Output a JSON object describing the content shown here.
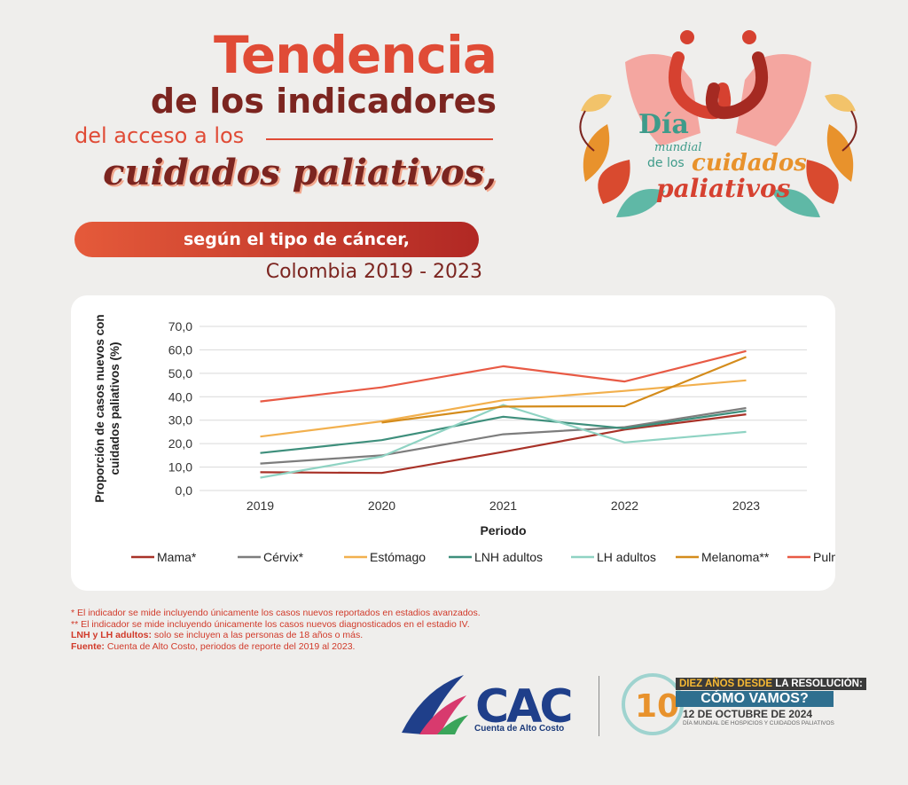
{
  "header": {
    "line1": "Tendencia",
    "line2": "de los indicadores",
    "line3": "del acceso a los",
    "line4": "cuidados paliativos,",
    "pill": "según el tipo de cáncer,",
    "subtitle": "Colombia 2019 - 2023"
  },
  "logo_dia": {
    "line1": "Día",
    "line2": "mundial",
    "line3": "de los",
    "line4": "cuidados",
    "line5": "paliativos"
  },
  "chart_data": {
    "type": "line",
    "title": "",
    "xlabel": "Periodo",
    "ylabel": "Proporción de casos nuevos con cuidados paliativos (%)",
    "categories": [
      "2019",
      "2020",
      "2021",
      "2022",
      "2023"
    ],
    "ylim": [
      0,
      70
    ],
    "yticks": [
      "0,0",
      "10,0",
      "20,0",
      "30,0",
      "40,0",
      "50,0",
      "60,0",
      "70,0"
    ],
    "grid": true,
    "legend_position": "bottom",
    "series": [
      {
        "name": "Mama*",
        "color": "#a83228",
        "values": [
          7.8,
          7.5,
          16.5,
          26.0,
          32.5
        ]
      },
      {
        "name": "Cérvix*",
        "color": "#7d7d7d",
        "values": [
          11.5,
          15.0,
          24.0,
          27.0,
          35.2
        ]
      },
      {
        "name": "Estómago",
        "color": "#f2b04e",
        "values": [
          23.0,
          29.5,
          38.5,
          42.5,
          47.0
        ]
      },
      {
        "name": "LNH adultos",
        "color": "#3e8f7c",
        "values": [
          16.0,
          21.5,
          31.5,
          26.5,
          34.0
        ]
      },
      {
        "name": "LH adultos",
        "color": "#8fd3c3",
        "values": [
          5.5,
          14.5,
          36.5,
          20.5,
          25.0
        ]
      },
      {
        "name": "Melanoma**",
        "color": "#d48c1c",
        "values": [
          null,
          29.0,
          35.8,
          36.0,
          57.0
        ]
      },
      {
        "name": "Pulmón*",
        "color": "#e85a45",
        "values": [
          38.0,
          44.0,
          53.0,
          46.5,
          59.5
        ]
      }
    ]
  },
  "notes": {
    "n1": "* El indicador se mide incluyendo únicamente los casos nuevos reportados en estadios avanzados.",
    "n2": "** El indicador se mide incluyendo únicamente los casos nuevos diagnosticados en el estadio IV.",
    "n3_label": "LNH y LH adultos:",
    "n3": " solo se incluyen a las personas de 18 años o más.",
    "n4_label": "Fuente:",
    "n4": " Cuenta de Alto Costo, periodos de reporte del 2019 al 2023."
  },
  "footer": {
    "cac": "CAC",
    "cac_sub": "Cuenta de Alto Costo",
    "badge_line1a": "DIEZ AÑOS DESDE",
    "badge_line1b": " LA RESOLUCIÓN:",
    "badge_line2": "CÓMO VAMOS?",
    "badge_line3": "12 DE OCTUBRE DE  2024",
    "badge_line4": "DÍA MUNDIAL DE HOSPICIOS Y CUIDADOS PALIATIVOS",
    "badge_num": "10"
  }
}
